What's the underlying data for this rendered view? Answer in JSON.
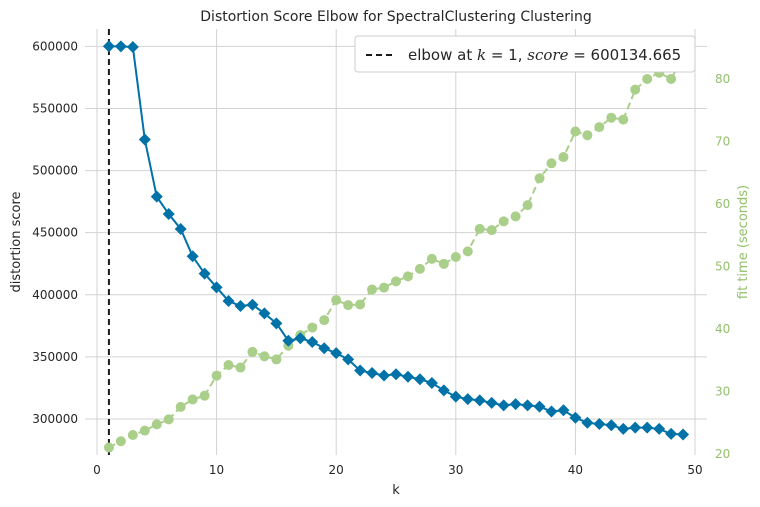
{
  "chart_data": {
    "type": "line",
    "title": "Distortion Score Elbow for SpectralClustering Clustering",
    "xlabel": "k",
    "ylabel": "distortion score",
    "y2label": "fit time (seconds)",
    "xlim": [
      -1,
      51
    ],
    "ylim": [
      271000,
      614000
    ],
    "y2lim": [
      19.8,
      88.0
    ],
    "xticks": [
      "0",
      "10",
      "20",
      "30",
      "40",
      "50"
    ],
    "xtick_values": [
      0,
      10,
      20,
      30,
      40,
      50
    ],
    "yticks": [
      "300000",
      "350000",
      "400000",
      "450000",
      "500000",
      "550000",
      "600000"
    ],
    "ytick_values": [
      300000,
      350000,
      400000,
      450000,
      500000,
      550000,
      600000
    ],
    "y2ticks": [
      "20",
      "30",
      "40",
      "50",
      "60",
      "70",
      "80"
    ],
    "y2tick_values": [
      20,
      30,
      40,
      50,
      60,
      70,
      80
    ],
    "grid": true,
    "legend": {
      "position": "top-right",
      "label_text": "elbow at ",
      "label_math_k": "k",
      "label_eq": " = 1, ",
      "label_math_score": "score",
      "label_tail": " = 600134.665"
    },
    "elbow_x": 1,
    "colors": {
      "distortion": "#0072a8",
      "fit_time": "#a9cf8a",
      "elbow": "#1a1a1a",
      "right_axis": "#93c06d",
      "grid": "#d3d3d3"
    },
    "series": [
      {
        "name": "distortion score",
        "x": [
          1,
          2,
          3,
          4,
          5,
          6,
          7,
          8,
          9,
          10,
          11,
          12,
          13,
          14,
          15,
          16,
          17,
          18,
          19,
          20,
          21,
          22,
          23,
          24,
          25,
          26,
          27,
          28,
          29,
          30,
          31,
          32,
          33,
          34,
          35,
          36,
          37,
          38,
          39,
          40,
          41,
          42,
          43,
          44,
          45,
          46,
          47,
          48,
          49
        ],
        "values": [
          600134.665,
          600000,
          599500,
          525000,
          479000,
          465000,
          453000,
          431000,
          417000,
          406000,
          395000,
          391000,
          392000,
          385000,
          377000,
          363000,
          365000,
          362000,
          357000,
          353000,
          348000,
          339000,
          337000,
          335000,
          336000,
          334000,
          332000,
          329000,
          323000,
          318000,
          316000,
          315000,
          313000,
          311000,
          312000,
          311000,
          310000,
          306000,
          307000,
          301000,
          297000,
          296000,
          295000,
          292000,
          293000,
          293000,
          292000,
          288000,
          287500
        ],
        "axis": "left"
      },
      {
        "name": "fit time",
        "x": [
          1,
          2,
          3,
          4,
          5,
          6,
          7,
          8,
          9,
          10,
          11,
          12,
          13,
          14,
          15,
          16,
          17,
          18,
          19,
          20,
          21,
          22,
          23,
          24,
          25,
          26,
          27,
          28,
          29,
          30,
          31,
          32,
          33,
          34,
          35,
          36,
          37,
          38,
          39,
          40,
          41,
          42,
          43,
          44,
          45,
          46,
          47,
          48,
          49
        ],
        "values": [
          21.0,
          22.0,
          23.0,
          23.7,
          24.7,
          25.5,
          27.5,
          28.7,
          29.3,
          32.5,
          34.2,
          33.8,
          36.3,
          35.6,
          35.1,
          37.3,
          39.0,
          40.2,
          41.4,
          44.6,
          43.8,
          43.9,
          46.3,
          46.6,
          47.6,
          48.4,
          49.6,
          51.2,
          50.4,
          51.5,
          52.4,
          56.0,
          55.8,
          57.2,
          58.0,
          59.8,
          64.1,
          66.5,
          67.5,
          71.6,
          71.0,
          72.3,
          73.8,
          73.5,
          78.3,
          80.0,
          81.0,
          80.0,
          83.5
        ],
        "axis": "right"
      }
    ]
  }
}
